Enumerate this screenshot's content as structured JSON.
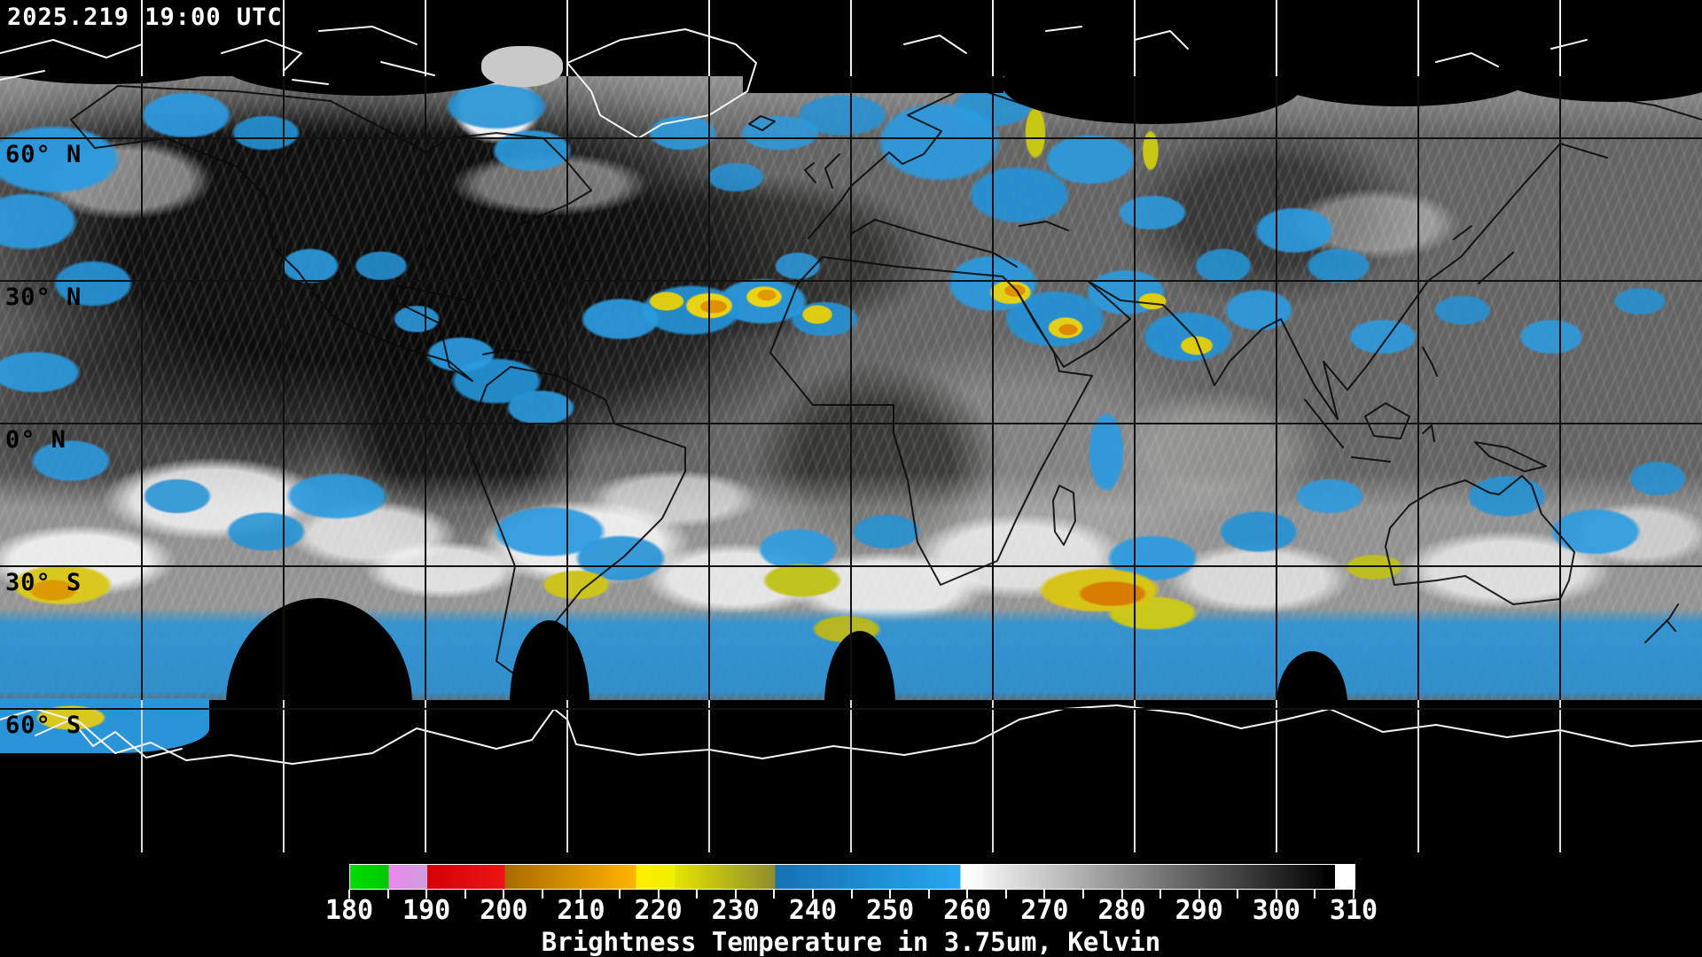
{
  "header": {
    "timestamp": "2025.219 19:00 UTC"
  },
  "map": {
    "latitude_labels": [
      {
        "text": "60° N",
        "latitude": 60
      },
      {
        "text": "30° N",
        "latitude": 30
      },
      {
        "text": "0° N",
        "latitude": 0
      },
      {
        "text": "30° S",
        "latitude": -30
      },
      {
        "text": "60° S",
        "latitude": -60
      }
    ]
  },
  "colorbar": {
    "caption": "Brightness Temperature in 3.75um, Kelvin",
    "unit": "Kelvin",
    "min_kelvin": 180,
    "max_kelvin": 310,
    "tick_step_kelvin": 5,
    "label_step_kelvin": 10,
    "labels": [
      "180",
      "190",
      "200",
      "210",
      "220",
      "230",
      "240",
      "250",
      "260",
      "270",
      "280",
      "290",
      "300",
      "310"
    ],
    "segments": [
      {
        "from": 180,
        "to": 185,
        "color_start": "#00dc00",
        "color_end": "#00c800"
      },
      {
        "from": 185,
        "to": 190,
        "color_start": "#ee86ee",
        "color_end": "#cf9ede"
      },
      {
        "from": 190,
        "to": 200,
        "color_start": "#d40008",
        "color_end": "#ee1414"
      },
      {
        "from": 200,
        "to": 217,
        "color_start": "#a96a00",
        "color_end": "#ffb400"
      },
      {
        "from": 217,
        "to": 222,
        "color_start": "#ffef00",
        "color_end": "#f0f000"
      },
      {
        "from": 222,
        "to": 235,
        "color_start": "#e4e400",
        "color_end": "#8d8d2e"
      },
      {
        "from": 235,
        "to": 259,
        "color_start": "#1572b2",
        "color_end": "#27a6f0"
      },
      {
        "from": 259,
        "to": 262,
        "color_start": "#ffffff",
        "color_end": "#f8f8f8"
      },
      {
        "from": 262,
        "to": 306,
        "color_start": "#f2f2f2",
        "color_end": "#050505"
      },
      {
        "from": 306,
        "to": 307.5,
        "color_start": "#000000",
        "color_end": "#000000"
      },
      {
        "from": 307.5,
        "to": 310,
        "color_start": "#ffffff",
        "color_end": "#ffffff"
      }
    ]
  }
}
